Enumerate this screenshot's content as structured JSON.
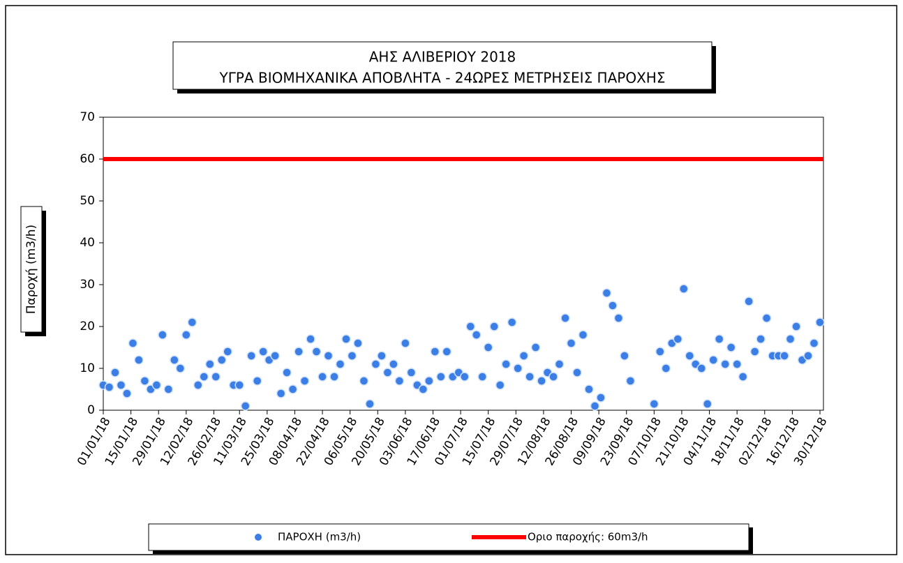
{
  "chart_data": {
    "type": "scatter",
    "title_lines": [
      "ΑΗΣ ΑΛΙΒΕΡΙΟΥ 2018",
      "ΥΓΡΑ ΒΙΟΜΗΧΑΝΙΚΑ ΑΠΟΒΛΗΤΑ - 24ΩΡΕΣ ΜΕΤΡΗΣΕΙΣ ΠΑΡΟΧΗΣ"
    ],
    "y_label": "Παροχή  (m3/h)",
    "xlim": [
      "01/01/18",
      "30/12/18"
    ],
    "xticks": [
      "01/01/18",
      "15/01/18",
      "29/01/18",
      "12/02/18",
      "26/02/18",
      "11/03/18",
      "25/03/18",
      "08/04/18",
      "22/04/18",
      "06/05/18",
      "20/05/18",
      "03/06/18",
      "17/06/18",
      "01/07/18",
      "15/07/18",
      "29/07/18",
      "12/08/18",
      "26/08/18",
      "09/09/18",
      "23/09/18",
      "07/10/18",
      "21/10/18",
      "04/11/18",
      "18/11/18",
      "02/12/18",
      "16/12/18",
      "30/12/18"
    ],
    "ylim": [
      0,
      70
    ],
    "yticks": [
      0,
      10,
      20,
      30,
      40,
      50,
      60,
      70
    ],
    "series": [
      {
        "name": "ΠΑΡΟΧΗ (m3/h)",
        "color": "#3b7ee6",
        "x": [
          "01/01/18",
          "04/01/18",
          "07/01/18",
          "10/01/18",
          "13/01/18",
          "16/01/18",
          "19/01/18",
          "22/01/18",
          "25/01/18",
          "28/01/18",
          "31/01/18",
          "03/02/18",
          "06/02/18",
          "09/02/18",
          "12/02/18",
          "15/02/18",
          "18/02/18",
          "21/02/18",
          "24/02/18",
          "27/02/18",
          "02/03/18",
          "05/03/18",
          "08/03/18",
          "11/03/18",
          "14/03/18",
          "17/03/18",
          "20/03/18",
          "23/03/18",
          "26/03/18",
          "29/03/18",
          "01/04/18",
          "04/04/18",
          "07/04/18",
          "10/04/18",
          "13/04/18",
          "16/04/18",
          "19/04/18",
          "22/04/18",
          "25/04/18",
          "28/04/18",
          "01/05/18",
          "04/05/18",
          "07/05/18",
          "10/05/18",
          "13/05/18",
          "16/05/18",
          "19/05/18",
          "22/05/18",
          "25/05/18",
          "28/05/18",
          "31/05/18",
          "03/06/18",
          "06/06/18",
          "09/06/18",
          "12/06/18",
          "15/06/18",
          "18/06/18",
          "21/06/18",
          "24/06/18",
          "27/06/18",
          "30/06/18",
          "03/07/18",
          "06/07/18",
          "09/07/18",
          "12/07/18",
          "15/07/18",
          "18/07/18",
          "21/07/18",
          "24/07/18",
          "27/07/18",
          "30/07/18",
          "02/08/18",
          "05/08/18",
          "08/08/18",
          "11/08/18",
          "14/08/18",
          "17/08/18",
          "20/08/18",
          "23/08/18",
          "26/08/18",
          "29/08/18",
          "01/09/18",
          "04/09/18",
          "07/09/18",
          "10/09/18",
          "13/09/18",
          "16/09/18",
          "19/09/18",
          "22/09/18",
          "25/09/18",
          "07/10/18",
          "10/10/18",
          "13/10/18",
          "16/10/18",
          "19/10/18",
          "22/10/18",
          "25/10/18",
          "28/10/18",
          "31/10/18",
          "03/11/18",
          "06/11/18",
          "09/11/18",
          "12/11/18",
          "15/11/18",
          "18/11/18",
          "21/11/18",
          "24/11/18",
          "27/11/18",
          "30/11/18",
          "03/12/18",
          "06/12/18",
          "09/12/18",
          "12/12/18",
          "15/12/18",
          "18/12/18",
          "21/12/18",
          "24/12/18",
          "27/12/18",
          "30/12/18"
        ],
        "values": [
          6,
          5.5,
          9,
          6,
          4,
          16,
          12,
          7,
          5,
          6,
          18,
          5,
          12,
          10,
          18,
          21,
          6,
          8,
          11,
          8,
          12,
          14,
          6,
          6,
          1,
          13,
          7,
          14,
          12,
          13,
          4,
          9,
          5,
          14,
          7,
          17,
          14,
          8,
          13,
          8,
          11,
          17,
          13,
          16,
          7,
          1.5,
          11,
          13,
          9,
          11,
          7,
          16,
          9,
          6,
          5,
          7,
          14,
          8,
          14,
          8,
          9,
          8,
          20,
          18,
          8,
          15,
          20,
          6,
          11,
          21,
          10,
          13,
          8,
          15,
          7,
          9,
          8,
          11,
          22,
          16,
          9,
          18,
          5,
          1,
          3,
          28,
          25,
          22,
          13,
          7,
          1.5,
          14,
          10,
          16,
          17,
          29,
          13,
          11,
          10,
          1.5,
          12,
          17,
          11,
          15,
          11,
          8,
          26,
          14,
          17,
          22,
          13,
          13,
          13,
          17,
          20,
          12,
          13,
          16,
          21
        ]
      }
    ],
    "limit": {
      "name": "Οριο παροχής: 60m3/h",
      "color": "#ff0000",
      "value": 60
    }
  }
}
